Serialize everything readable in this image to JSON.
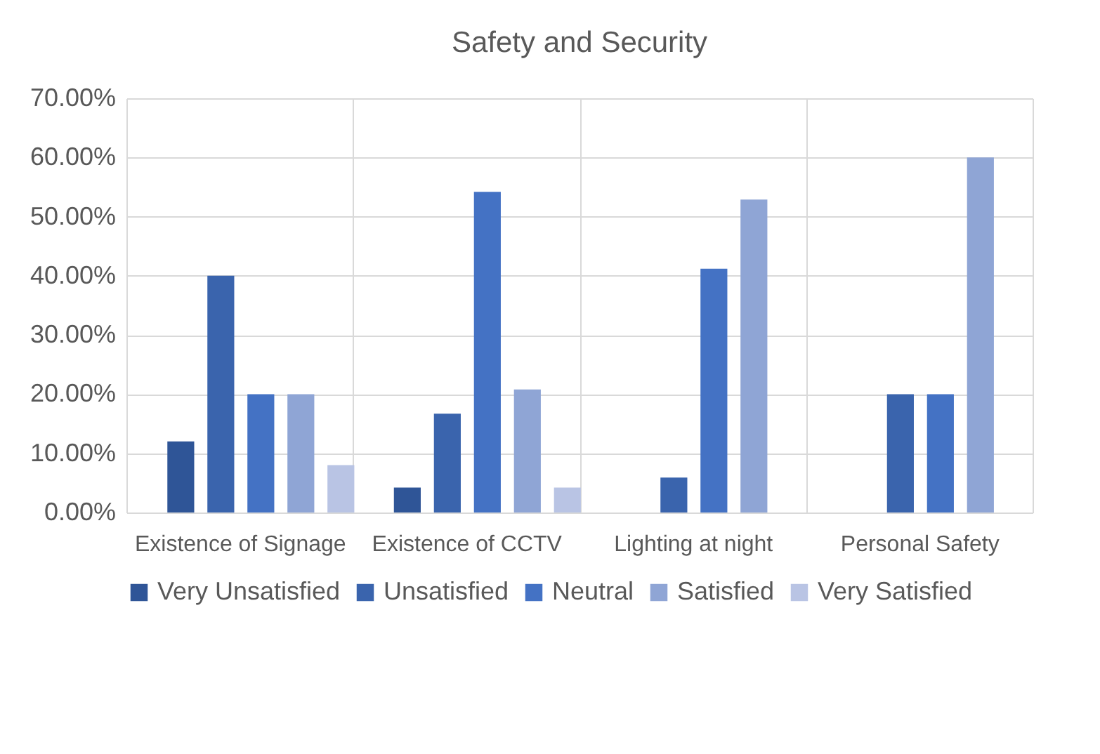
{
  "chart_data": {
    "type": "bar",
    "title": "Safety and Security",
    "categories": [
      "Existence of Signage",
      "Existence of CCTV",
      "Lighting at night",
      "Personal Safety"
    ],
    "series": [
      {
        "name": "Very Unsatisfied",
        "color": "#2f5597",
        "values": [
          12,
          4.2,
          0,
          0
        ]
      },
      {
        "name": "Unsatisfied",
        "color": "#3a64ad",
        "values": [
          40,
          16.7,
          5.9,
          20
        ]
      },
      {
        "name": "Neutral",
        "color": "#4472c4",
        "values": [
          20,
          54.2,
          41.2,
          20
        ]
      },
      {
        "name": "Satisfied",
        "color": "#8fa5d5",
        "values": [
          20,
          20.8,
          52.9,
          60
        ]
      },
      {
        "name": "Very Satisfied",
        "color": "#b9c4e4",
        "values": [
          8,
          4.2,
          0,
          0
        ]
      }
    ],
    "ylim": [
      0,
      70
    ],
    "yticks": [
      {
        "value": 0,
        "label": "0.00%"
      },
      {
        "value": 10,
        "label": "10.00%"
      },
      {
        "value": 20,
        "label": "20.00%"
      },
      {
        "value": 30,
        "label": "30.00%"
      },
      {
        "value": 40,
        "label": "40.00%"
      },
      {
        "value": 50,
        "label": "50.00%"
      },
      {
        "value": 60,
        "label": "60.00%"
      },
      {
        "value": 70,
        "label": "70.00%"
      }
    ],
    "grid": true,
    "legend": "bottom"
  }
}
